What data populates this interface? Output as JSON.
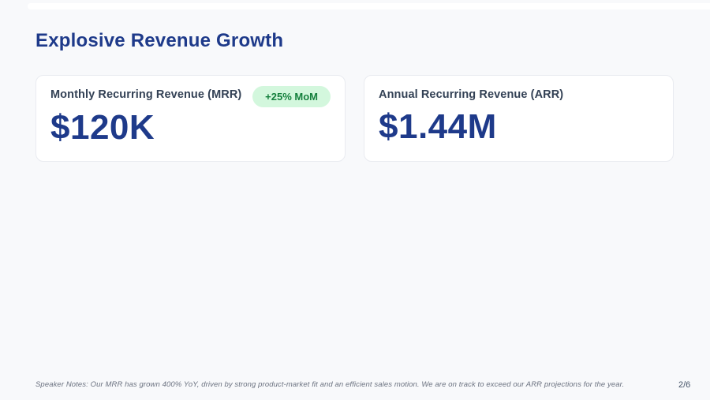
{
  "slide": {
    "title": "Explosive Revenue Growth",
    "speaker_notes": "Speaker Notes: Our MRR has grown 400% YoY, driven by strong product-market fit and an efficient sales motion. We are on track to exceed our ARR projections for the year.",
    "page_indicator": "2/6"
  },
  "metrics": [
    {
      "label": "Monthly Recurring Revenue (MRR)",
      "value": "$120K",
      "badge": "+25% MoM"
    },
    {
      "label": "Annual Recurring Revenue (ARR)",
      "value": "$1.44M"
    }
  ],
  "colors": {
    "background": "#f8f9fb",
    "card_background": "#ffffff",
    "card_border": "#e9ebf0",
    "accent_blue": "#1e3a8a",
    "label_slate": "#334155",
    "badge_background": "#d3f7dd",
    "badge_text": "#15803d",
    "notes_gray": "#6b7280"
  }
}
